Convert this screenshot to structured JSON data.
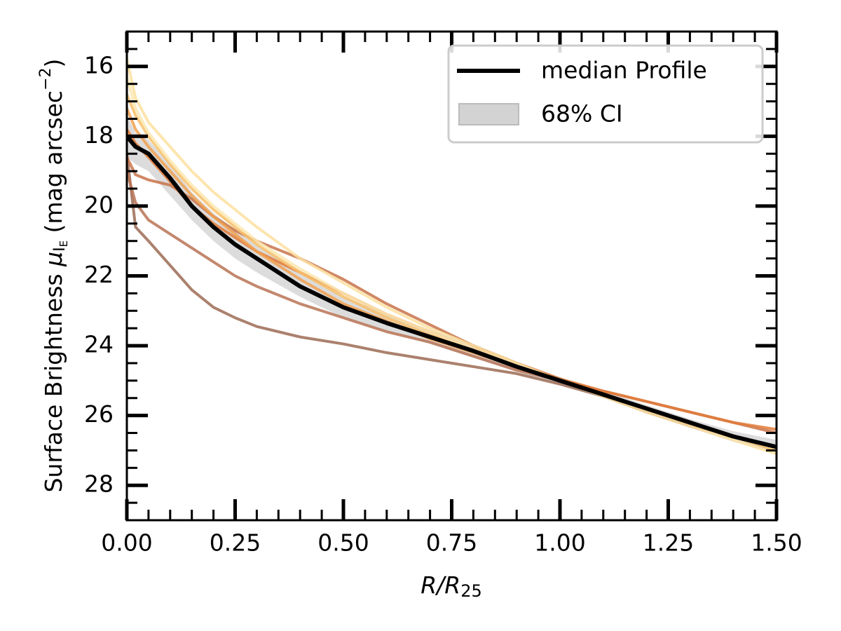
{
  "chart_data": {
    "type": "line",
    "xlabel": [
      "R/R",
      "25"
    ],
    "ylabel": [
      "Surface Brightness ",
      "μ",
      "I",
      "E",
      " (mag arcsec",
      "−2",
      ")"
    ],
    "xlim": [
      0,
      1.5
    ],
    "ylim": [
      29,
      15
    ],
    "xticks": [
      {
        "value": 0,
        "label": "0.00"
      },
      {
        "value": 0.25,
        "label": "0.25"
      },
      {
        "value": 0.5,
        "label": "0.50"
      },
      {
        "value": 0.75,
        "label": "0.75"
      },
      {
        "value": 1,
        "label": "1.00"
      },
      {
        "value": 1.25,
        "label": "1.25"
      },
      {
        "value": 1.5,
        "label": "1.50"
      }
    ],
    "yticks": [
      16,
      18,
      20,
      22,
      24,
      26,
      28
    ],
    "legend": "upper right",
    "x": [
      0,
      0.02,
      0.05,
      0.1,
      0.15,
      0.2,
      0.25,
      0.3,
      0.4,
      0.5,
      0.6,
      0.7,
      0.8,
      0.9,
      1.0,
      1.1,
      1.2,
      1.3,
      1.4,
      1.5
    ],
    "profiles": [
      {
        "color": "#9c6b55",
        "values": [
          18.5,
          20.6,
          21.0,
          21.7,
          22.4,
          22.9,
          23.2,
          23.45,
          23.75,
          23.95,
          24.2,
          24.4,
          24.6,
          24.8,
          25.1,
          25.45,
          25.9,
          26.3,
          26.6,
          26.9
        ]
      },
      {
        "color": "#b87355",
        "values": [
          19.0,
          19.9,
          20.4,
          20.8,
          21.2,
          21.6,
          22.0,
          22.3,
          22.8,
          23.2,
          23.6,
          23.9,
          24.3,
          24.7,
          25.0,
          25.4,
          25.8,
          26.2,
          26.6,
          27.0
        ]
      },
      {
        "color": "#c8734a",
        "values": [
          18.6,
          19.1,
          19.25,
          19.4,
          19.8,
          20.3,
          20.7,
          21.0,
          21.5,
          22.1,
          22.8,
          23.4,
          24.0,
          24.5,
          25.0,
          25.3,
          25.6,
          25.9,
          26.2,
          26.5
        ]
      },
      {
        "color": "#e07b39",
        "values": [
          17.8,
          18.2,
          18.6,
          19.3,
          20.0,
          20.5,
          20.9,
          21.3,
          21.9,
          22.5,
          23.1,
          23.6,
          24.1,
          24.5,
          24.95,
          25.3,
          25.6,
          25.9,
          26.2,
          26.4
        ]
      },
      {
        "color": "#f0a050",
        "values": [
          17.2,
          17.8,
          18.3,
          19.0,
          19.7,
          20.3,
          20.8,
          21.3,
          22.1,
          22.8,
          23.3,
          23.8,
          24.2,
          24.6,
          25.0,
          25.4,
          25.8,
          26.2,
          26.6,
          27.0
        ]
      },
      {
        "color": "#f8c06a",
        "values": [
          16.8,
          17.4,
          18.0,
          18.8,
          19.5,
          20.1,
          20.6,
          21.1,
          21.9,
          22.6,
          23.2,
          23.7,
          24.1,
          24.6,
          25.0,
          25.4,
          25.8,
          26.2,
          26.6,
          27.0
        ]
      },
      {
        "color": "#fde0a0",
        "values": [
          15.8,
          16.9,
          17.6,
          18.3,
          19.0,
          19.6,
          20.1,
          20.6,
          21.5,
          22.2,
          22.9,
          23.5,
          24.0,
          24.5,
          25.0,
          25.45,
          25.9,
          26.3,
          26.7,
          27.1
        ]
      },
      {
        "color": "#fce8b0",
        "values": [
          16.3,
          17.2,
          17.9,
          18.7,
          19.4,
          20.0,
          20.5,
          21.0,
          21.8,
          22.5,
          23.1,
          23.6,
          24.1,
          24.55,
          25.0,
          25.4,
          25.8,
          26.2,
          26.6,
          26.95
        ]
      }
    ],
    "band": {
      "name": "68% CI",
      "color": "#d3d3d3",
      "lower": [
        17.4,
        17.9,
        18.1,
        18.8,
        19.6,
        20.2,
        20.7,
        21.1,
        21.9,
        22.6,
        23.1,
        23.55,
        23.95,
        24.45,
        24.9,
        25.3,
        25.7,
        26.1,
        26.45,
        26.7
      ],
      "upper": [
        18.6,
        18.8,
        19.0,
        19.7,
        20.4,
        21.0,
        21.5,
        21.9,
        22.6,
        23.2,
        23.6,
        23.95,
        24.35,
        24.75,
        25.1,
        25.5,
        25.9,
        26.35,
        26.75,
        27.05
      ]
    },
    "series": [
      {
        "name": "median Profile",
        "color": "#000000",
        "values": [
          18.0,
          18.3,
          18.5,
          19.2,
          20.0,
          20.6,
          21.1,
          21.5,
          22.3,
          22.9,
          23.35,
          23.75,
          24.15,
          24.6,
          25.0,
          25.4,
          25.8,
          26.2,
          26.6,
          26.9
        ]
      }
    ]
  }
}
